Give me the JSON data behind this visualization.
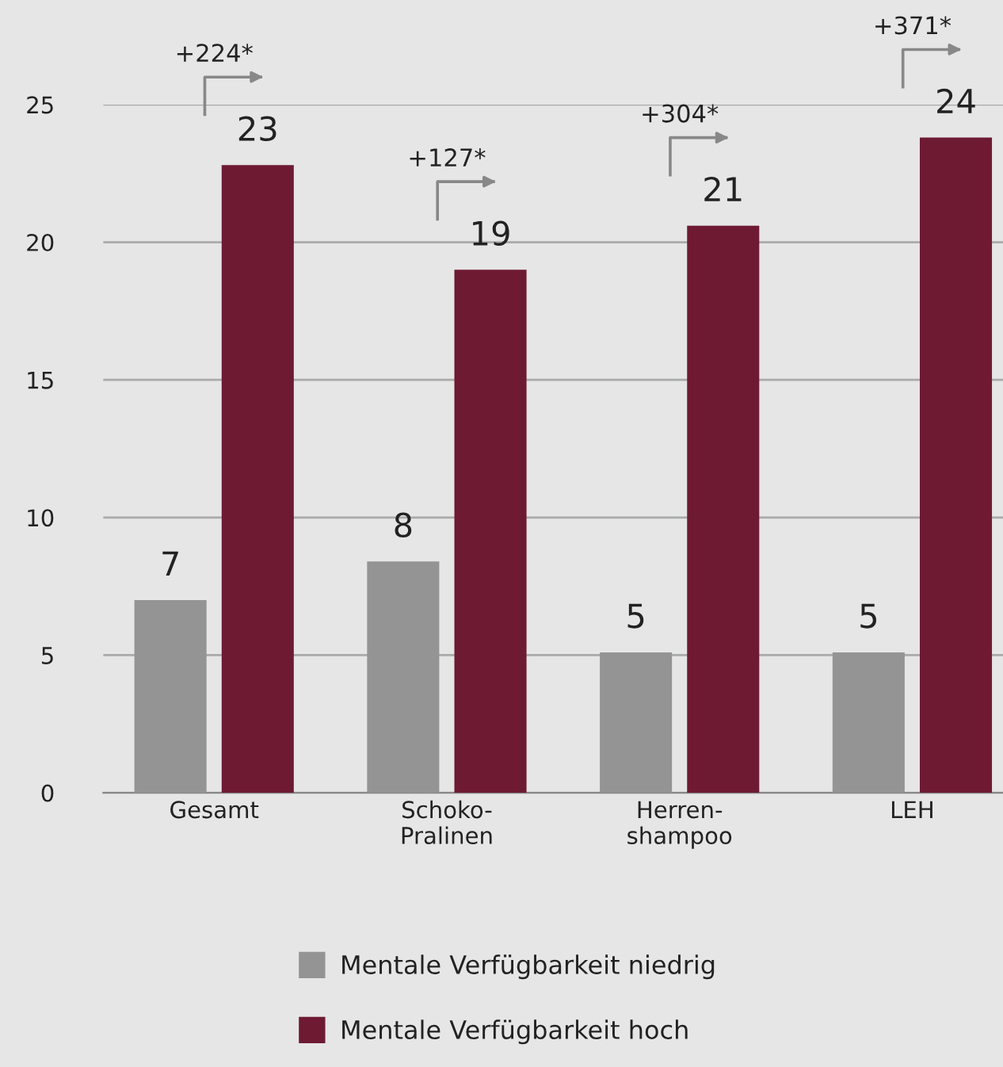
{
  "chart_data": {
    "type": "bar",
    "categories": [
      "Gesamt",
      "Schoko-\nPralinen",
      "Herren-\nshampoo",
      "LEH"
    ],
    "series": [
      {
        "name": "Mentale Verfügbarkeit niedrig",
        "color": "#949494",
        "values": [
          7.0,
          8.4,
          5.1,
          5.1
        ],
        "value_labels": [
          "7",
          "8",
          "5",
          "5"
        ]
      },
      {
        "name": "Mentale Verfügbarkeit hoch",
        "color": "#6e1a33",
        "values": [
          22.8,
          19.0,
          20.6,
          23.8
        ],
        "value_labels": [
          "23",
          "19",
          "21",
          "24"
        ]
      }
    ],
    "annotations": [
      "+224*",
      "+127*",
      "+304*",
      "+371*"
    ],
    "ylim": [
      0,
      25
    ],
    "yticks": [
      0,
      5,
      10,
      15,
      20,
      25
    ],
    "grid": "y",
    "legend": "bottom",
    "marker": "square"
  }
}
